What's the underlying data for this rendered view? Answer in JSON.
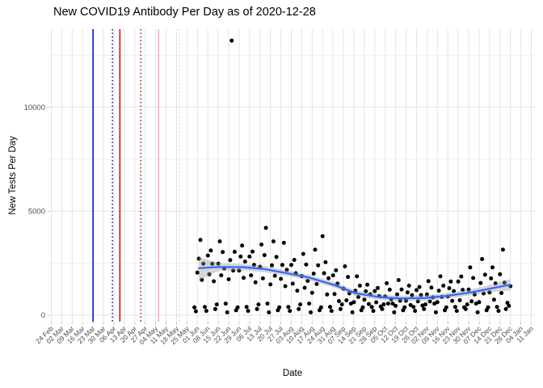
{
  "title": "New COVID19 Antibody Per Day as of 2020-12-28",
  "x_axis_label": "Date",
  "y_axis_label": "New Tests Per Day",
  "chart_data": {
    "type": "scatter",
    "title": "New COVID19 Antibody Per Day as of 2020-12-28",
    "xlabel": "Date",
    "ylabel": "New Tests Per Day",
    "grid": true,
    "legend": "none",
    "y_ticks": [
      0,
      5000,
      10000
    ],
    "y_minor_ticks": [
      2500,
      7500,
      12500
    ],
    "ylim": [
      -300,
      13750
    ],
    "x_start_date": "2020-02-24",
    "x_tick_interval_days": 7,
    "x_tick_labels": [
      "24 Feb",
      "02 Mar",
      "09 Mar",
      "16 Mar",
      "23 Mar",
      "30 Mar",
      "06 Apr",
      "13 Apr",
      "20 Apr",
      "27 Apr",
      "04 May",
      "11 May",
      "18 May",
      "25 May",
      "01 Jun",
      "08 Jun",
      "15 Jun",
      "22 Jun",
      "29 Jun",
      "06 Jul",
      "13 Jul",
      "20 Jul",
      "27 Jul",
      "03 Aug",
      "10 Aug",
      "17 Aug",
      "24 Aug",
      "31 Aug",
      "07 Sep",
      "14 Sep",
      "21 Sep",
      "28 Sep",
      "05 Oct",
      "12 Oct",
      "19 Oct",
      "26 Oct",
      "02 Nov",
      "09 Nov",
      "16 Nov",
      "23 Nov",
      "30 Nov",
      "07 Dec",
      "14 Dec",
      "21 Dec",
      "28 Dec",
      "04 Jan",
      "11 Jan"
    ],
    "colors": {
      "point": "#000000",
      "smooth_line": "#3366ff",
      "ribbon": "rgba(153,153,153,0.4)",
      "grid_major": "#e4e4e4",
      "grid_minor": "#efefef",
      "axis_text": "#4d4d4d",
      "tick_mark": "#c8c8c8",
      "vline_blue": "#0000cd",
      "vline_red": "#d40000",
      "vline_pink": "#ffa9b8",
      "vline_pink_dotted": "#ffc4cf"
    },
    "vlines": [
      {
        "date": "2020-03-23",
        "color": "#0000cd",
        "style": "solid"
      },
      {
        "date": "2020-04-05",
        "color": "#0000cd",
        "style": "dotted"
      },
      {
        "date": "2020-04-10",
        "color": "#d40000",
        "style": "solid"
      },
      {
        "date": "2020-04-24",
        "color": "#d40000",
        "style": "dotted"
      },
      {
        "date": "2020-05-06",
        "color": "#ffa9b8",
        "style": "solid"
      },
      {
        "date": "2020-05-20",
        "color": "#ffc4cf",
        "style": "dotted"
      }
    ],
    "smooth_line": [
      [
        "2020-06-02",
        2260
      ],
      [
        "2020-06-15",
        2320
      ],
      [
        "2020-07-01",
        2310
      ],
      [
        "2020-07-15",
        2230
      ],
      [
        "2020-08-01",
        2010
      ],
      [
        "2020-08-15",
        1810
      ],
      [
        "2020-09-01",
        1450
      ],
      [
        "2020-09-15",
        1060
      ],
      [
        "2020-10-01",
        870
      ],
      [
        "2020-10-15",
        810
      ],
      [
        "2020-11-01",
        830
      ],
      [
        "2020-11-15",
        930
      ],
      [
        "2020-12-01",
        1090
      ],
      [
        "2020-12-15",
        1290
      ],
      [
        "2020-12-28",
        1470
      ]
    ],
    "ribbon": [
      [
        "2020-06-02",
        1670,
        2790
      ],
      [
        "2020-06-15",
        2130,
        2520
      ],
      [
        "2020-07-01",
        2160,
        2460
      ],
      [
        "2020-07-15",
        2080,
        2380
      ],
      [
        "2020-08-01",
        1880,
        2140
      ],
      [
        "2020-08-15",
        1680,
        1940
      ],
      [
        "2020-09-01",
        1320,
        1580
      ],
      [
        "2020-09-15",
        930,
        1190
      ],
      [
        "2020-10-01",
        740,
        1000
      ],
      [
        "2020-10-15",
        680,
        940
      ],
      [
        "2020-11-01",
        700,
        960
      ],
      [
        "2020-11-15",
        800,
        1060
      ],
      [
        "2020-12-01",
        950,
        1230
      ],
      [
        "2020-12-15",
        1110,
        1470
      ],
      [
        "2020-12-28",
        1190,
        1750
      ]
    ],
    "points": [
      [
        "2020-05-30",
        380
      ],
      [
        "2020-05-31",
        190
      ],
      [
        "2020-06-01",
        2050
      ],
      [
        "2020-06-02",
        2720
      ],
      [
        "2020-06-03",
        3620
      ],
      [
        "2020-06-04",
        1700
      ],
      [
        "2020-06-05",
        2480
      ],
      [
        "2020-06-06",
        400
      ],
      [
        "2020-06-07",
        210
      ],
      [
        "2020-06-08",
        2870
      ],
      [
        "2020-06-09",
        1970
      ],
      [
        "2020-06-10",
        3110
      ],
      [
        "2020-06-11",
        2470
      ],
      [
        "2020-06-12",
        1630
      ],
      [
        "2020-06-13",
        300
      ],
      [
        "2020-06-14",
        520
      ],
      [
        "2020-06-15",
        2480
      ],
      [
        "2020-06-16",
        3550
      ],
      [
        "2020-06-17",
        1920
      ],
      [
        "2020-06-18",
        3040
      ],
      [
        "2020-06-19",
        2250
      ],
      [
        "2020-06-20",
        560
      ],
      [
        "2020-06-21",
        140
      ],
      [
        "2020-06-22",
        1730
      ],
      [
        "2020-06-23",
        2650
      ],
      [
        "2020-06-24",
        13200
      ],
      [
        "2020-06-25",
        2150
      ],
      [
        "2020-06-26",
        3050
      ],
      [
        "2020-06-27",
        240
      ],
      [
        "2020-06-28",
        380
      ],
      [
        "2020-06-29",
        2150
      ],
      [
        "2020-06-30",
        2820
      ],
      [
        "2020-07-01",
        3350
      ],
      [
        "2020-07-02",
        1800
      ],
      [
        "2020-07-03",
        2580
      ],
      [
        "2020-07-04",
        400
      ],
      [
        "2020-07-05",
        210
      ],
      [
        "2020-07-06",
        2820
      ],
      [
        "2020-07-07",
        1920
      ],
      [
        "2020-07-08",
        3060
      ],
      [
        "2020-07-09",
        2420
      ],
      [
        "2020-07-10",
        1580
      ],
      [
        "2020-07-11",
        300
      ],
      [
        "2020-07-12",
        520
      ],
      [
        "2020-07-13",
        2330
      ],
      [
        "2020-07-14",
        3400
      ],
      [
        "2020-07-15",
        1770
      ],
      [
        "2020-07-16",
        2890
      ],
      [
        "2020-07-17",
        4200
      ],
      [
        "2020-07-18",
        560
      ],
      [
        "2020-07-19",
        140
      ],
      [
        "2020-07-20",
        1480
      ],
      [
        "2020-07-21",
        2400
      ],
      [
        "2020-07-22",
        3550
      ],
      [
        "2020-07-23",
        1900
      ],
      [
        "2020-07-24",
        2800
      ],
      [
        "2020-07-25",
        240
      ],
      [
        "2020-07-26",
        380
      ],
      [
        "2020-07-27",
        1750
      ],
      [
        "2020-07-28",
        2420
      ],
      [
        "2020-07-29",
        3480
      ],
      [
        "2020-07-30",
        1400
      ],
      [
        "2020-07-31",
        2180
      ],
      [
        "2020-08-01",
        400
      ],
      [
        "2020-08-02",
        210
      ],
      [
        "2020-08-03",
        2420
      ],
      [
        "2020-08-04",
        1520
      ],
      [
        "2020-08-05",
        2660
      ],
      [
        "2020-08-06",
        2020
      ],
      [
        "2020-08-07",
        1180
      ],
      [
        "2020-08-08",
        300
      ],
      [
        "2020-08-09",
        520
      ],
      [
        "2020-08-10",
        1880
      ],
      [
        "2020-08-11",
        2950
      ],
      [
        "2020-08-12",
        1320
      ],
      [
        "2020-08-13",
        2440
      ],
      [
        "2020-08-14",
        1650
      ],
      [
        "2020-08-15",
        560
      ],
      [
        "2020-08-16",
        140
      ],
      [
        "2020-08-17",
        1080
      ],
      [
        "2020-08-18",
        2000
      ],
      [
        "2020-08-19",
        3150
      ],
      [
        "2020-08-20",
        1500
      ],
      [
        "2020-08-21",
        2400
      ],
      [
        "2020-08-22",
        240
      ],
      [
        "2020-08-23",
        380
      ],
      [
        "2020-08-24",
        3800
      ],
      [
        "2020-08-25",
        2020
      ],
      [
        "2020-08-26",
        2550
      ],
      [
        "2020-08-27",
        1000
      ],
      [
        "2020-08-28",
        1780
      ],
      [
        "2020-08-29",
        400
      ],
      [
        "2020-08-30",
        210
      ],
      [
        "2020-08-31",
        1920
      ],
      [
        "2020-09-01",
        1020
      ],
      [
        "2020-09-02",
        2160
      ],
      [
        "2020-09-03",
        1520
      ],
      [
        "2020-09-04",
        680
      ],
      [
        "2020-09-05",
        300
      ],
      [
        "2020-09-06",
        520
      ],
      [
        "2020-09-07",
        1280
      ],
      [
        "2020-09-08",
        2350
      ],
      [
        "2020-09-09",
        720
      ],
      [
        "2020-09-10",
        1840
      ],
      [
        "2020-09-11",
        1050
      ],
      [
        "2020-09-12",
        560
      ],
      [
        "2020-09-13",
        140
      ],
      [
        "2020-09-14",
        630
      ],
      [
        "2020-09-15",
        1180
      ],
      [
        "2020-09-16",
        1870
      ],
      [
        "2020-09-17",
        880
      ],
      [
        "2020-09-18",
        1420
      ],
      [
        "2020-09-19",
        240
      ],
      [
        "2020-09-20",
        380
      ],
      [
        "2020-09-21",
        750
      ],
      [
        "2020-09-22",
        1150
      ],
      [
        "2020-09-23",
        1470
      ],
      [
        "2020-09-24",
        540
      ],
      [
        "2020-09-25",
        1010
      ],
      [
        "2020-09-26",
        400
      ],
      [
        "2020-09-27",
        210
      ],
      [
        "2020-09-28",
        1160
      ],
      [
        "2020-09-29",
        620
      ],
      [
        "2020-09-30",
        1310
      ],
      [
        "2020-10-01",
        920
      ],
      [
        "2020-10-02",
        420
      ],
      [
        "2020-10-03",
        300
      ],
      [
        "2020-10-04",
        520
      ],
      [
        "2020-10-05",
        900
      ],
      [
        "2020-10-06",
        1540
      ],
      [
        "2020-10-07",
        560
      ],
      [
        "2020-10-08",
        1230
      ],
      [
        "2020-10-09",
        760
      ],
      [
        "2020-10-10",
        560
      ],
      [
        "2020-10-11",
        140
      ],
      [
        "2020-10-12",
        450
      ],
      [
        "2020-10-13",
        1000
      ],
      [
        "2020-10-14",
        1690
      ],
      [
        "2020-10-15",
        700
      ],
      [
        "2020-10-16",
        1240
      ],
      [
        "2020-10-17",
        240
      ],
      [
        "2020-10-18",
        380
      ],
      [
        "2020-10-19",
        700
      ],
      [
        "2020-10-20",
        1100
      ],
      [
        "2020-10-21",
        1420
      ],
      [
        "2020-10-22",
        490
      ],
      [
        "2020-10-23",
        960
      ],
      [
        "2020-10-24",
        400
      ],
      [
        "2020-10-25",
        210
      ],
      [
        "2020-10-26",
        1210
      ],
      [
        "2020-10-27",
        670
      ],
      [
        "2020-10-28",
        1360
      ],
      [
        "2020-10-29",
        970
      ],
      [
        "2020-10-30",
        470
      ],
      [
        "2020-10-31",
        300
      ],
      [
        "2020-11-01",
        520
      ],
      [
        "2020-11-02",
        1000
      ],
      [
        "2020-11-03",
        1640
      ],
      [
        "2020-11-04",
        660
      ],
      [
        "2020-11-05",
        1330
      ],
      [
        "2020-11-06",
        860
      ],
      [
        "2020-11-07",
        560
      ],
      [
        "2020-11-08",
        140
      ],
      [
        "2020-11-09",
        630
      ],
      [
        "2020-11-10",
        1180
      ],
      [
        "2020-11-11",
        1870
      ],
      [
        "2020-11-12",
        880
      ],
      [
        "2020-11-13",
        1420
      ],
      [
        "2020-11-14",
        240
      ],
      [
        "2020-11-15",
        380
      ],
      [
        "2020-11-16",
        900
      ],
      [
        "2020-11-17",
        1300
      ],
      [
        "2020-11-18",
        1620
      ],
      [
        "2020-11-19",
        690
      ],
      [
        "2020-11-20",
        1160
      ],
      [
        "2020-11-21",
        400
      ],
      [
        "2020-11-22",
        210
      ],
      [
        "2020-11-23",
        1620
      ],
      [
        "2020-11-24",
        720
      ],
      [
        "2020-11-25",
        1860
      ],
      [
        "2020-11-26",
        1220
      ],
      [
        "2020-11-27",
        380
      ],
      [
        "2020-11-28",
        300
      ],
      [
        "2020-11-29",
        520
      ],
      [
        "2020-11-30",
        1230
      ],
      [
        "2020-12-01",
        2300
      ],
      [
        "2020-12-02",
        670
      ],
      [
        "2020-12-03",
        1790
      ],
      [
        "2020-12-04",
        1000
      ],
      [
        "2020-12-05",
        560
      ],
      [
        "2020-12-06",
        140
      ],
      [
        "2020-12-07",
        630
      ],
      [
        "2020-12-08",
        1550
      ],
      [
        "2020-12-09",
        2700
      ],
      [
        "2020-12-10",
        1050
      ],
      [
        "2020-12-11",
        1950
      ],
      [
        "2020-12-12",
        240
      ],
      [
        "2020-12-13",
        380
      ],
      [
        "2020-12-14",
        1100
      ],
      [
        "2020-12-15",
        1770
      ],
      [
        "2020-12-16",
        2300
      ],
      [
        "2020-12-17",
        750
      ],
      [
        "2020-12-18",
        1530
      ],
      [
        "2020-12-19",
        400
      ],
      [
        "2020-12-20",
        210
      ],
      [
        "2020-12-21",
        1970
      ],
      [
        "2020-12-22",
        1070
      ],
      [
        "2020-12-23",
        3150
      ],
      [
        "2020-12-24",
        1570
      ],
      [
        "2020-12-25",
        300
      ],
      [
        "2020-12-26",
        600
      ],
      [
        "2020-12-27",
        450
      ],
      [
        "2020-12-28",
        1400
      ]
    ]
  }
}
